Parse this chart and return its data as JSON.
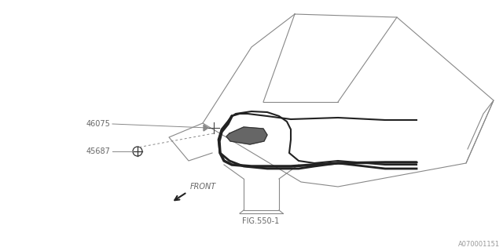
{
  "bg_color": "#ffffff",
  "line_color": "#888888",
  "dark_color": "#444444",
  "thick_color": "#222222",
  "text_color": "#666666",
  "title_code": "A070001151",
  "fig_ref": "FIG.550-1",
  "front_label": "FRONT",
  "part1_label": "46075",
  "part2_label": "45687"
}
